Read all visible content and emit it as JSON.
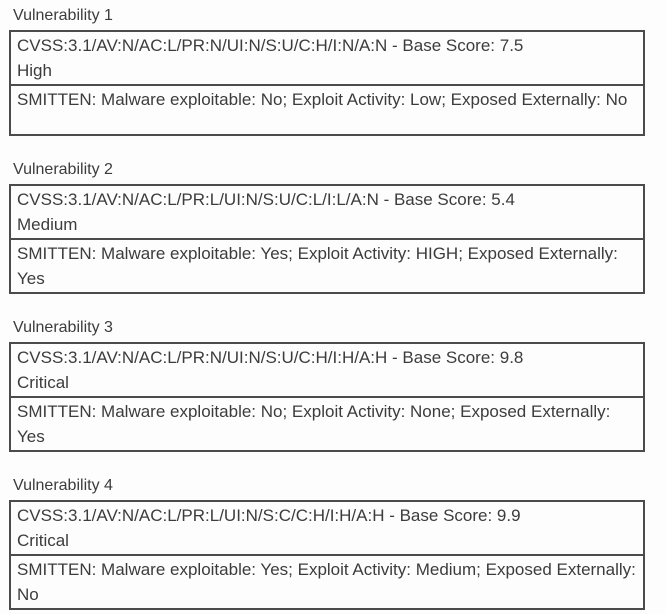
{
  "page": {
    "background_color": "#fdfdfd",
    "text_color": "#3c3c3c",
    "border_color": "#4b4b4b"
  },
  "vulnerabilities": [
    {
      "title": "Vulnerability 1",
      "cvss": "CVSS:3.1/AV:N/AC:L/PR:N/UI:N/S:U/C:H/I:N/A:N - Base Score: 7.5",
      "severity": "High",
      "smitten": "SMITTEN: Malware exploitable: No; Exploit Activity: Low; Exposed Externally: No"
    },
    {
      "title": "Vulnerability 2",
      "cvss": "CVSS:3.1/AV:N/AC:L/PR:L/UI:N/S:U/C:L/I:L/A:N - Base Score: 5.4",
      "severity": "Medium",
      "smitten": "SMITTEN: Malware exploitable: Yes; Exploit Activity: HIGH; Exposed Externally: Yes"
    },
    {
      "title": "Vulnerability 3",
      "cvss": "CVSS:3.1/AV:N/AC:L/PR:N/UI:N/S:U/C:H/I:H/A:H - Base Score: 9.8",
      "severity": "Critical",
      "smitten": "SMITTEN: Malware exploitable: No; Exploit Activity: None; Exposed Externally: Yes"
    },
    {
      "title": "Vulnerability 4",
      "cvss": "CVSS:3.1/AV:N/AC:L/PR:L/UI:N/S:C/C:H/I:H/A:H - Base Score: 9.9",
      "severity": "Critical",
      "smitten": "SMITTEN: Malware exploitable: Yes; Exploit Activity: Medium; Exposed Externally: No"
    }
  ]
}
